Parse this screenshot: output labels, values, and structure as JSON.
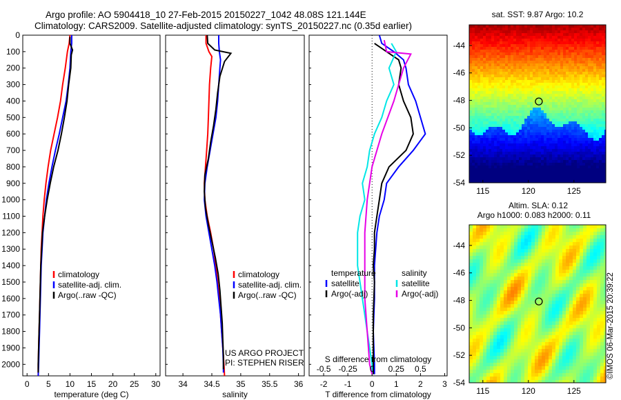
{
  "header": {
    "line1": "Argo profile: AO 5904418_10 27-Feb-2015 20150227_1042 48.08S 121.144E",
    "line2": "Climatology: CARS2009. Satellite-adjusted climatology: synTS_20150227.nc (0.35d earlier)"
  },
  "colors": {
    "climatology": "#ff0000",
    "satellite": "#0000ff",
    "argo": "#000000",
    "salinity_satellite": "#00e6e6",
    "salinity_argo": "#e600e6"
  },
  "chart_data": [
    {
      "type": "line",
      "id": "temperature",
      "xlabel": "temperature (deg C)",
      "xlim": [
        -1,
        31
      ],
      "xticks": [
        0,
        5,
        10,
        15,
        20,
        25,
        30
      ],
      "ylim": [
        2070,
        0
      ],
      "yticks": [
        0,
        100,
        200,
        300,
        400,
        500,
        600,
        700,
        800,
        900,
        1000,
        1100,
        1200,
        1300,
        1400,
        1500,
        1600,
        1700,
        1800,
        1900,
        2000
      ],
      "legend": [
        "climatology",
        "satellite-adj. clim.",
        "Argo(..raw -QC)"
      ],
      "series": [
        {
          "name": "climatology",
          "color": "climatology",
          "points": [
            [
              10,
              0
            ],
            [
              9.8,
              50
            ],
            [
              9.4,
              100
            ],
            [
              8.9,
              200
            ],
            [
              8.3,
              300
            ],
            [
              7.8,
              400
            ],
            [
              7.1,
              500
            ],
            [
              6.3,
              600
            ],
            [
              5.5,
              700
            ],
            [
              4.9,
              800
            ],
            [
              4.4,
              900
            ],
            [
              4.0,
              1000
            ],
            [
              3.7,
              1100
            ],
            [
              3.5,
              1200
            ],
            [
              3.3,
              1300
            ],
            [
              3.2,
              1400
            ],
            [
              3.1,
              1500
            ],
            [
              3.0,
              1600
            ],
            [
              2.9,
              1700
            ],
            [
              2.8,
              1800
            ],
            [
              2.7,
              1900
            ],
            [
              2.6,
              2000
            ],
            [
              2.6,
              2070
            ]
          ]
        },
        {
          "name": "satellite-adj. clim.",
          "color": "satellite",
          "points": [
            [
              10.4,
              0
            ],
            [
              10.4,
              50
            ],
            [
              10.2,
              100
            ],
            [
              10.0,
              200
            ],
            [
              9.6,
              300
            ],
            [
              9.1,
              400
            ],
            [
              8.3,
              500
            ],
            [
              7.5,
              600
            ],
            [
              6.6,
              700
            ],
            [
              5.8,
              800
            ],
            [
              5.1,
              900
            ],
            [
              4.5,
              1000
            ],
            [
              4.1,
              1100
            ],
            [
              3.7,
              1200
            ],
            [
              3.5,
              1300
            ],
            [
              3.3,
              1400
            ],
            [
              3.2,
              1500
            ],
            [
              3.1,
              1600
            ],
            [
              3.0,
              1700
            ],
            [
              2.9,
              1800
            ],
            [
              2.8,
              1900
            ],
            [
              2.7,
              2000
            ],
            [
              2.6,
              2070
            ]
          ]
        },
        {
          "name": "Argo(..raw -QC)",
          "color": "argo",
          "points": [
            [
              10.0,
              10
            ],
            [
              10.0,
              50
            ],
            [
              10.6,
              90
            ],
            [
              10.3,
              120
            ],
            [
              10.2,
              200
            ],
            [
              9.7,
              300
            ],
            [
              9.3,
              400
            ],
            [
              8.7,
              500
            ],
            [
              8.0,
              600
            ],
            [
              7.2,
              700
            ],
            [
              6.2,
              800
            ],
            [
              5.4,
              900
            ],
            [
              4.7,
              1000
            ],
            [
              4.1,
              1100
            ],
            [
              3.6,
              1200
            ],
            [
              3.4,
              1300
            ],
            [
              3.2,
              1400
            ],
            [
              3.1,
              1500
            ],
            [
              3.0,
              1600
            ],
            [
              2.9,
              1700
            ],
            [
              2.8,
              1800
            ],
            [
              2.7,
              1900
            ],
            [
              2.6,
              2000
            ],
            [
              2.6,
              2050
            ]
          ]
        }
      ]
    },
    {
      "type": "line",
      "id": "salinity",
      "xlabel": "salinity",
      "xlim": [
        33.7,
        36.1
      ],
      "xticks": [
        34,
        34.5,
        35,
        35.5,
        36
      ],
      "xticklabels": [
        "34",
        "34.5",
        "35",
        "35.5",
        "36"
      ],
      "ylim": [
        2070,
        0
      ],
      "legend": [
        "climatology",
        "satellite-adj. clim.",
        "Argo(..raw -QC)"
      ],
      "annotation": [
        "US ARGO PROJECT",
        "PI: STEPHEN RISER"
      ],
      "series": [
        {
          "name": "climatology",
          "color": "climatology",
          "points": [
            [
              34.4,
              0
            ],
            [
              34.4,
              50
            ],
            [
              34.45,
              100
            ],
            [
              34.5,
              130
            ],
            [
              34.48,
              200
            ],
            [
              34.46,
              300
            ],
            [
              34.45,
              400
            ],
            [
              34.44,
              500
            ],
            [
              34.43,
              600
            ],
            [
              34.41,
              700
            ],
            [
              34.39,
              800
            ],
            [
              34.37,
              900
            ],
            [
              34.38,
              1000
            ],
            [
              34.42,
              1100
            ],
            [
              34.48,
              1200
            ],
            [
              34.53,
              1300
            ],
            [
              34.57,
              1400
            ],
            [
              34.6,
              1500
            ],
            [
              34.63,
              1600
            ],
            [
              34.65,
              1700
            ],
            [
              34.67,
              1800
            ],
            [
              34.69,
              1900
            ],
            [
              34.71,
              2000
            ],
            [
              34.72,
              2070
            ]
          ]
        },
        {
          "name": "satellite-adj. clim.",
          "color": "satellite",
          "points": [
            [
              34.62,
              0
            ],
            [
              34.62,
              50
            ],
            [
              34.63,
              100
            ],
            [
              34.65,
              150
            ],
            [
              34.64,
              200
            ],
            [
              34.62,
              300
            ],
            [
              34.6,
              400
            ],
            [
              34.57,
              500
            ],
            [
              34.52,
              600
            ],
            [
              34.47,
              700
            ],
            [
              34.42,
              800
            ],
            [
              34.38,
              900
            ],
            [
              34.37,
              1000
            ],
            [
              34.4,
              1100
            ],
            [
              34.45,
              1200
            ],
            [
              34.5,
              1300
            ],
            [
              34.55,
              1400
            ],
            [
              34.59,
              1500
            ],
            [
              34.62,
              1600
            ],
            [
              34.65,
              1700
            ],
            [
              34.67,
              1800
            ],
            [
              34.69,
              1900
            ],
            [
              34.7,
              2000
            ],
            [
              34.7,
              2050
            ]
          ]
        },
        {
          "name": "Argo(..raw -QC)",
          "color": "argo",
          "points": [
            [
              34.42,
              0
            ],
            [
              34.43,
              50
            ],
            [
              34.55,
              90
            ],
            [
              34.83,
              110
            ],
            [
              34.72,
              160
            ],
            [
              34.64,
              250
            ],
            [
              34.6,
              350
            ],
            [
              34.57,
              450
            ],
            [
              34.53,
              550
            ],
            [
              34.48,
              650
            ],
            [
              34.44,
              750
            ],
            [
              34.38,
              850
            ],
            [
              34.37,
              950
            ],
            [
              34.39,
              1050
            ],
            [
              34.44,
              1150
            ],
            [
              34.5,
              1250
            ],
            [
              34.56,
              1350
            ],
            [
              34.61,
              1450
            ],
            [
              34.64,
              1550
            ],
            [
              34.66,
              1650
            ],
            [
              34.68,
              1750
            ],
            [
              34.69,
              1850
            ],
            [
              34.7,
              1950
            ],
            [
              34.7,
              2030
            ]
          ]
        }
      ]
    },
    {
      "type": "line",
      "id": "difference",
      "xlabel": "T difference from climatology",
      "xlim": [
        -2.6,
        3.1
      ],
      "xticks": [
        -2,
        -1,
        0,
        1,
        2,
        3
      ],
      "xticklabels": [
        "-2",
        "-1",
        "0",
        "1",
        "2",
        "3"
      ],
      "top_axis_label": "S difference from climatology",
      "top_ticks": [
        -0.5,
        -0.25,
        0,
        0.25,
        0.5
      ],
      "top_ticklabels": [
        "-0.5",
        "-0.25",
        "0",
        "0.25",
        "0.5"
      ],
      "ylim": [
        2070,
        0
      ],
      "legend_titles": [
        "temperature",
        "salinity"
      ],
      "legend": [
        {
          "name": "satellite",
          "color": "satellite"
        },
        {
          "name": "Argo(-adj)",
          "color": "argo"
        },
        {
          "name": "satellite",
          "color": "salinity_satellite"
        },
        {
          "name": "Argo(-adj)",
          "color": "salinity_argo"
        }
      ],
      "series": [
        {
          "name": "temperature satellite",
          "color": "satellite",
          "points": [
            [
              0.3,
              0
            ],
            [
              0.4,
              50
            ],
            [
              0.9,
              100
            ],
            [
              1.3,
              150
            ],
            [
              1.4,
              200
            ],
            [
              1.5,
              300
            ],
            [
              1.8,
              400
            ],
            [
              2.0,
              500
            ],
            [
              2.2,
              600
            ],
            [
              1.7,
              700
            ],
            [
              1.1,
              800
            ],
            [
              0.6,
              900
            ],
            [
              0.5,
              1000
            ],
            [
              0.3,
              1100
            ],
            [
              0.2,
              1200
            ],
            [
              0.1,
              1400
            ],
            [
              0.1,
              1600
            ],
            [
              0.05,
              1800
            ],
            [
              0.1,
              2000
            ],
            [
              0.1,
              2060
            ]
          ]
        },
        {
          "name": "temperature Argo(-adj)",
          "color": "argo",
          "points": [
            [
              0.1,
              50
            ],
            [
              0.6,
              100
            ],
            [
              1.1,
              150
            ],
            [
              1.2,
              200
            ],
            [
              1.1,
              300
            ],
            [
              1.3,
              400
            ],
            [
              1.6,
              500
            ],
            [
              1.7,
              600
            ],
            [
              1.4,
              700
            ],
            [
              0.7,
              800
            ],
            [
              0.4,
              900
            ],
            [
              0.3,
              1000
            ],
            [
              0.2,
              1100
            ],
            [
              0.1,
              1200
            ],
            [
              0.1,
              1300
            ],
            [
              0.05,
              1400
            ],
            [
              0.1,
              1500
            ],
            [
              0.05,
              1700
            ],
            [
              0.05,
              1900
            ],
            [
              0.05,
              2060
            ]
          ]
        },
        {
          "name": "salinity satellite",
          "color": "salinity_satellite",
          "points": [
            [
              0.8,
              50
            ],
            [
              1.0,
              100
            ],
            [
              0.7,
              200
            ],
            [
              0.9,
              300
            ],
            [
              0.6,
              400
            ],
            [
              0.4,
              500
            ],
            [
              0.1,
              600
            ],
            [
              -0.1,
              700
            ],
            [
              -0.2,
              800
            ],
            [
              -0.4,
              900
            ],
            [
              -0.3,
              1000
            ],
            [
              -0.5,
              1100
            ],
            [
              -0.6,
              1200
            ],
            [
              -0.6,
              1300
            ],
            [
              -0.6,
              1400
            ],
            [
              -0.5,
              1500
            ],
            [
              -0.4,
              1600
            ],
            [
              -0.3,
              1700
            ],
            [
              -0.2,
              1800
            ],
            [
              -0.1,
              1900
            ],
            [
              0.0,
              2000
            ],
            [
              0.0,
              2060
            ]
          ]
        },
        {
          "name": "salinity Argo(-adj)",
          "color": "salinity_argo",
          "points": [
            [
              0.5,
              30
            ],
            [
              0.6,
              100
            ],
            [
              1.6,
              115
            ],
            [
              1.3,
              200
            ],
            [
              1.1,
              300
            ],
            [
              0.9,
              400
            ],
            [
              0.4,
              600
            ],
            [
              0.0,
              800
            ],
            [
              -0.1,
              900
            ],
            [
              -0.2,
              1000
            ],
            [
              -0.3,
              1200
            ],
            [
              -0.3,
              1400
            ],
            [
              -0.3,
              1600
            ],
            [
              -0.2,
              1800
            ],
            [
              -0.1,
              2000
            ],
            [
              0.0,
              2060
            ]
          ]
        }
      ]
    },
    {
      "type": "heatmap",
      "id": "sst-map",
      "title": "sat. SST: 9.87  Argo: 10.2",
      "xlim": [
        113.5,
        128.5
      ],
      "ylim": [
        -54,
        -42.5
      ],
      "xticks": [
        115,
        120,
        125
      ],
      "yticks": [
        -44,
        -46,
        -48,
        -50,
        -52,
        -54
      ],
      "marker": [
        121.144,
        -48.08
      ]
    },
    {
      "type": "heatmap",
      "id": "sla-map",
      "title": [
        "Altim. SLA: 0.12",
        "Argo h1000: 0.083 h2000: 0.11"
      ],
      "xlim": [
        113.5,
        128.5
      ],
      "ylim": [
        -54,
        -42.5
      ],
      "xticks": [
        115,
        120,
        125
      ],
      "yticks": [
        -44,
        -46,
        -48,
        -50,
        -52,
        -54
      ],
      "marker": [
        121.144,
        -48.08
      ]
    }
  ],
  "credit": "©IMOS 06-Mar-2015 20:39:22"
}
